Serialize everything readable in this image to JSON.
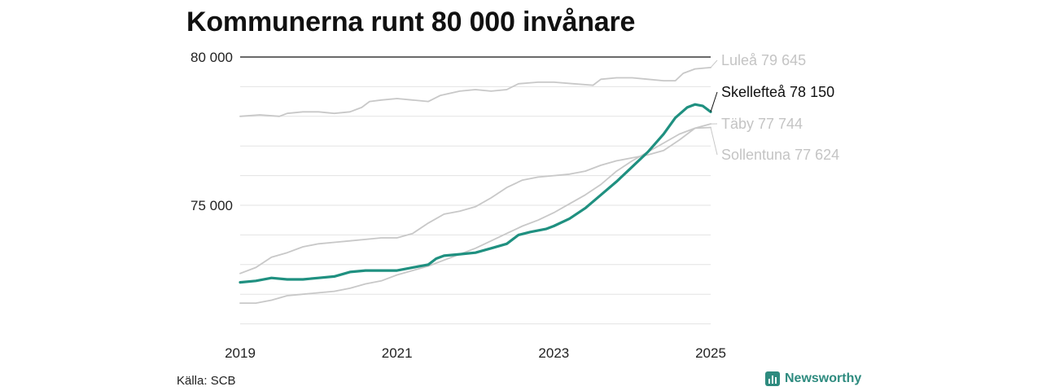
{
  "title": "Kommunerna runt 80 000 invånare",
  "source": "Källa: SCB",
  "brand": "Newsworthy",
  "chart_data": {
    "type": "line",
    "x_range": [
      2019.0,
      2025.0
    ],
    "ylim": [
      71000,
      80000
    ],
    "y_ticks": [
      {
        "value": 75000,
        "label": "75 000"
      },
      {
        "value": 80000,
        "label": "80 000"
      }
    ],
    "x_ticks": [
      {
        "value": 2019,
        "label": "2019"
      },
      {
        "value": 2021,
        "label": "2021"
      },
      {
        "value": 2023,
        "label": "2023"
      },
      {
        "value": 2025,
        "label": "2025"
      }
    ],
    "grid": true,
    "series": [
      {
        "name": "Luleå",
        "end_label": "Luleå 79 645",
        "highlight": false,
        "color": "#c8c8c8",
        "points": [
          [
            2019.0,
            78000
          ],
          [
            2019.25,
            78050
          ],
          [
            2019.5,
            78000
          ],
          [
            2019.6,
            78100
          ],
          [
            2019.8,
            78150
          ],
          [
            2020.0,
            78150
          ],
          [
            2020.2,
            78100
          ],
          [
            2020.4,
            78150
          ],
          [
            2020.55,
            78300
          ],
          [
            2020.65,
            78500
          ],
          [
            2020.8,
            78550
          ],
          [
            2021.0,
            78600
          ],
          [
            2021.2,
            78550
          ],
          [
            2021.4,
            78500
          ],
          [
            2021.55,
            78700
          ],
          [
            2021.8,
            78850
          ],
          [
            2022.0,
            78900
          ],
          [
            2022.2,
            78850
          ],
          [
            2022.4,
            78900
          ],
          [
            2022.55,
            79100
          ],
          [
            2022.8,
            79150
          ],
          [
            2023.0,
            79150
          ],
          [
            2023.25,
            79100
          ],
          [
            2023.5,
            79050
          ],
          [
            2023.6,
            79250
          ],
          [
            2023.8,
            79300
          ],
          [
            2024.0,
            79300
          ],
          [
            2024.2,
            79250
          ],
          [
            2024.4,
            79200
          ],
          [
            2024.55,
            79200
          ],
          [
            2024.65,
            79450
          ],
          [
            2024.8,
            79600
          ],
          [
            2025.0,
            79645
          ]
        ]
      },
      {
        "name": "Skellefteå",
        "end_label": "Skellefteå 78 150",
        "highlight": true,
        "color": "#1f9080",
        "points": [
          [
            2019.0,
            72400
          ],
          [
            2019.2,
            72450
          ],
          [
            2019.4,
            72550
          ],
          [
            2019.6,
            72500
          ],
          [
            2019.8,
            72500
          ],
          [
            2020.0,
            72550
          ],
          [
            2020.2,
            72600
          ],
          [
            2020.4,
            72750
          ],
          [
            2020.6,
            72800
          ],
          [
            2020.8,
            72800
          ],
          [
            2021.0,
            72800
          ],
          [
            2021.2,
            72900
          ],
          [
            2021.4,
            73000
          ],
          [
            2021.5,
            73200
          ],
          [
            2021.6,
            73300
          ],
          [
            2021.8,
            73350
          ],
          [
            2022.0,
            73400
          ],
          [
            2022.2,
            73550
          ],
          [
            2022.4,
            73700
          ],
          [
            2022.55,
            74000
          ],
          [
            2022.7,
            74100
          ],
          [
            2022.9,
            74200
          ],
          [
            2023.0,
            74300
          ],
          [
            2023.2,
            74550
          ],
          [
            2023.4,
            74900
          ],
          [
            2023.6,
            75350
          ],
          [
            2023.8,
            75800
          ],
          [
            2024.0,
            76300
          ],
          [
            2024.2,
            76800
          ],
          [
            2024.4,
            77400
          ],
          [
            2024.55,
            77950
          ],
          [
            2024.7,
            78300
          ],
          [
            2024.8,
            78400
          ],
          [
            2024.9,
            78350
          ],
          [
            2025.0,
            78150
          ]
        ]
      },
      {
        "name": "Täby",
        "end_label": "Täby 77 744",
        "highlight": false,
        "color": "#c8c8c8",
        "points": [
          [
            2019.0,
            72700
          ],
          [
            2019.2,
            72900
          ],
          [
            2019.4,
            73250
          ],
          [
            2019.6,
            73400
          ],
          [
            2019.8,
            73600
          ],
          [
            2020.0,
            73700
          ],
          [
            2020.2,
            73750
          ],
          [
            2020.4,
            73800
          ],
          [
            2020.6,
            73850
          ],
          [
            2020.8,
            73900
          ],
          [
            2021.0,
            73900
          ],
          [
            2021.2,
            74050
          ],
          [
            2021.4,
            74400
          ],
          [
            2021.6,
            74700
          ],
          [
            2021.8,
            74800
          ],
          [
            2022.0,
            74950
          ],
          [
            2022.2,
            75250
          ],
          [
            2022.4,
            75600
          ],
          [
            2022.6,
            75850
          ],
          [
            2022.8,
            75950
          ],
          [
            2023.0,
            76000
          ],
          [
            2023.2,
            76050
          ],
          [
            2023.4,
            76150
          ],
          [
            2023.6,
            76350
          ],
          [
            2023.8,
            76500
          ],
          [
            2024.0,
            76600
          ],
          [
            2024.2,
            76700
          ],
          [
            2024.4,
            76850
          ],
          [
            2024.6,
            77200
          ],
          [
            2024.8,
            77600
          ],
          [
            2025.0,
            77744
          ]
        ]
      },
      {
        "name": "Sollentuna",
        "end_label": "Sollentuna 77 624",
        "highlight": false,
        "color": "#c8c8c8",
        "points": [
          [
            2019.0,
            71700
          ],
          [
            2019.2,
            71700
          ],
          [
            2019.4,
            71800
          ],
          [
            2019.6,
            71950
          ],
          [
            2019.8,
            72000
          ],
          [
            2020.0,
            72050
          ],
          [
            2020.2,
            72100
          ],
          [
            2020.4,
            72200
          ],
          [
            2020.6,
            72350
          ],
          [
            2020.8,
            72450
          ],
          [
            2021.0,
            72650
          ],
          [
            2021.2,
            72800
          ],
          [
            2021.4,
            72950
          ],
          [
            2021.6,
            73150
          ],
          [
            2021.8,
            73350
          ],
          [
            2022.0,
            73550
          ],
          [
            2022.2,
            73800
          ],
          [
            2022.4,
            74050
          ],
          [
            2022.6,
            74300
          ],
          [
            2022.8,
            74500
          ],
          [
            2023.0,
            74750
          ],
          [
            2023.2,
            75050
          ],
          [
            2023.4,
            75350
          ],
          [
            2023.6,
            75700
          ],
          [
            2023.8,
            76150
          ],
          [
            2024.0,
            76500
          ],
          [
            2024.2,
            76800
          ],
          [
            2024.4,
            77100
          ],
          [
            2024.6,
            77400
          ],
          [
            2024.8,
            77600
          ],
          [
            2025.0,
            77624
          ]
        ]
      }
    ]
  }
}
